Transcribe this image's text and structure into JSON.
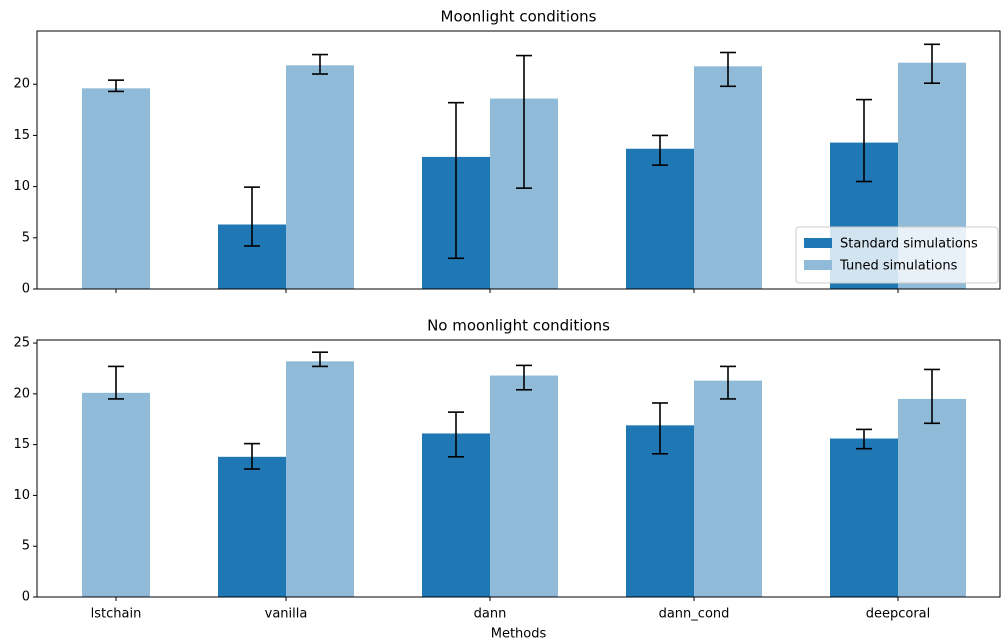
{
  "chart_data": [
    {
      "type": "bar",
      "title": "Moonlight conditions",
      "categories": [
        "lstchain",
        "vanilla",
        "dann",
        "dann_cond",
        "deepcoral"
      ],
      "series": [
        {
          "name": "Standard simulations",
          "color": "#1f77b4",
          "values": [
            null,
            6.3,
            12.9,
            13.7,
            14.3
          ],
          "errors": [
            null,
            [
              2.1,
              3.65
            ],
            [
              9.9,
              5.3
            ],
            [
              1.6,
              1.3
            ],
            [
              3.8,
              4.2
            ]
          ]
        },
        {
          "name": "Tuned simulations",
          "color": "#8fbbd9",
          "values": [
            19.6,
            21.85,
            18.6,
            21.75,
            22.1
          ],
          "errors": [
            [
              0.3,
              0.8
            ],
            [
              0.85,
              1.05
            ],
            [
              8.75,
              4.2
            ],
            [
              1.95,
              1.35
            ],
            [
              2.0,
              1.8
            ]
          ]
        }
      ],
      "ylim": [
        0,
        25.2
      ],
      "yticks": [
        0,
        5,
        10,
        15,
        20
      ],
      "legend": "lower right"
    },
    {
      "type": "bar",
      "title": "No moonlight conditions",
      "x_label": "Methods",
      "categories": [
        "lstchain",
        "vanilla",
        "dann",
        "dann_cond",
        "deepcoral"
      ],
      "series": [
        {
          "color": "#1f77b4",
          "values": [
            null,
            13.8,
            16.1,
            16.9,
            15.6
          ],
          "errors": [
            null,
            [
              1.2,
              1.3
            ],
            [
              2.3,
              2.1
            ],
            [
              2.8,
              2.2
            ],
            [
              1.0,
              0.9
            ]
          ]
        },
        {
          "color": "#8fbbd9",
          "values": [
            20.1,
            23.2,
            21.8,
            21.3,
            19.5
          ],
          "errors": [
            [
              0.6,
              2.6
            ],
            [
              0.5,
              0.9
            ],
            [
              1.4,
              1.0
            ],
            [
              1.8,
              1.4
            ],
            [
              2.4,
              2.9
            ]
          ]
        }
      ],
      "ylim": [
        0,
        25.3
      ],
      "yticks": [
        0,
        5,
        10,
        15,
        20,
        25
      ]
    }
  ]
}
